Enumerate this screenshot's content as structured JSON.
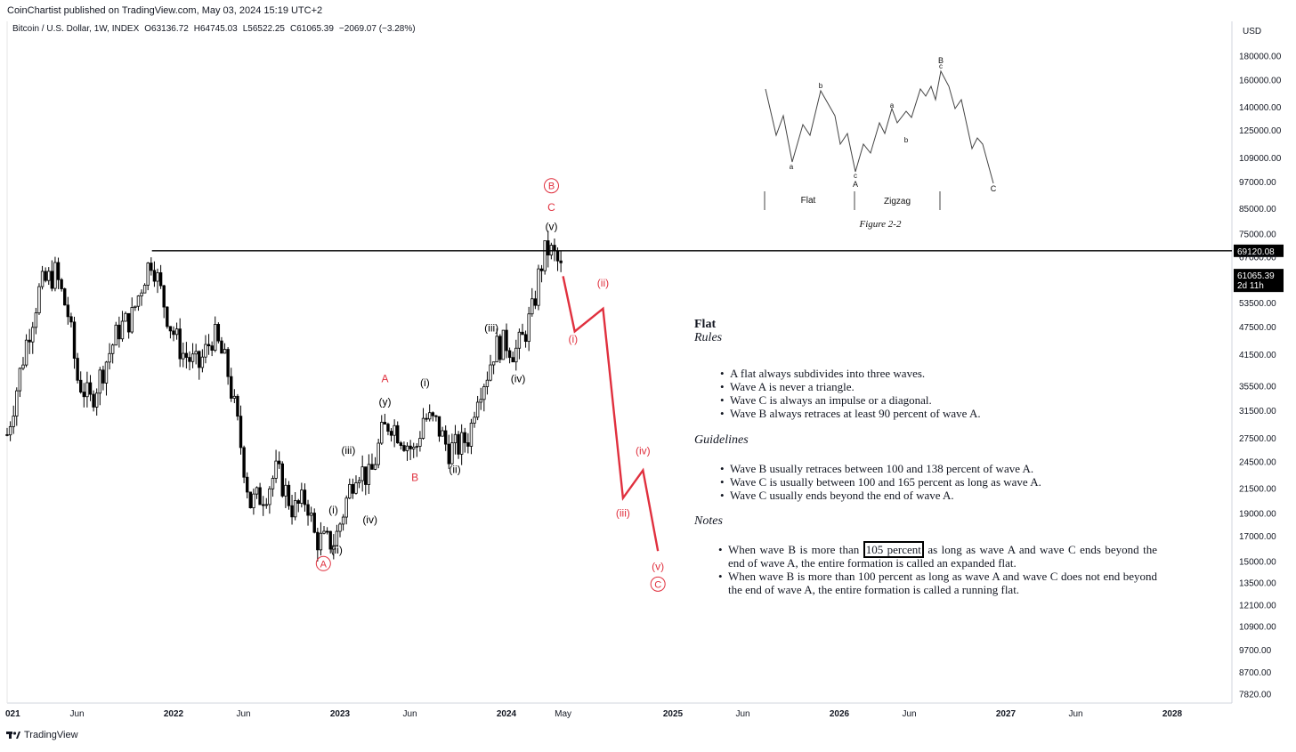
{
  "header": {
    "published": "CoinChartist published on TradingView.com, May 03, 2024 15:19 UTC+2",
    "symbol": "Bitcoin / U.S. Dollar, 1W, INDEX",
    "open": "O63136.72",
    "high": "H64745.03",
    "low": "L56522.25",
    "close": "C61065.39",
    "change": "−2069.07 (−3.28%)"
  },
  "footer": {
    "brand": "TradingView"
  },
  "colors": {
    "red": "#e0303e",
    "text": "#131722",
    "grid": "#e6e6e6"
  },
  "chart_data": {
    "type": "candlestick",
    "currency_label": "USD",
    "y_scale": "log",
    "ylim": [
      7000,
      200000
    ],
    "price_ticks": [
      "180000.00",
      "160000.00",
      "140000.00",
      "125000.00",
      "109000.00",
      "97000.00",
      "85000.00",
      "75000.00",
      "67000.00",
      "53500.00",
      "47500.00",
      "41500.00",
      "35500.00",
      "31500.00",
      "27500.00",
      "24500.00",
      "21500.00",
      "19000.00",
      "17000.00",
      "15000.00",
      "13500.00",
      "12100.00",
      "10900.00",
      "9700.00",
      "8700.00",
      "7820.00"
    ],
    "time_ticks": [
      {
        "label": "021",
        "t": 2021.0
      },
      {
        "label": "Jun",
        "t": 2021.42
      },
      {
        "label": "2022",
        "t": 2022.0
      },
      {
        "label": "Jun",
        "t": 2022.42
      },
      {
        "label": "2023",
        "t": 2023.0
      },
      {
        "label": "Jun",
        "t": 2023.42
      },
      {
        "label": "2024",
        "t": 2024.0
      },
      {
        "label": "May",
        "t": 2024.34
      },
      {
        "label": "2025",
        "t": 2025.0
      },
      {
        "label": "Jun",
        "t": 2025.42
      },
      {
        "label": "2026",
        "t": 2026.0
      },
      {
        "label": "Jun",
        "t": 2026.42
      },
      {
        "label": "2027",
        "t": 2027.0
      },
      {
        "label": "Jun",
        "t": 2027.42
      },
      {
        "label": "2028",
        "t": 2028.0
      }
    ],
    "horizontal_line": {
      "price": 69120.08,
      "label": "69120.08",
      "from_t": 2021.87
    },
    "last_price": {
      "label": "61065.39",
      "countdown": "2d 11h",
      "price": 61065.39
    },
    "price_path": [
      [
        2021.0,
        28000
      ],
      [
        2021.12,
        45000
      ],
      [
        2021.2,
        58000
      ],
      [
        2021.29,
        62000
      ],
      [
        2021.37,
        50000
      ],
      [
        2021.42,
        37000
      ],
      [
        2021.5,
        33000
      ],
      [
        2021.58,
        39000
      ],
      [
        2021.67,
        47000
      ],
      [
        2021.75,
        50000
      ],
      [
        2021.83,
        62000
      ],
      [
        2021.87,
        67000
      ],
      [
        2021.92,
        57000
      ],
      [
        2021.98,
        48000
      ],
      [
        2022.05,
        42000
      ],
      [
        2022.15,
        39000
      ],
      [
        2022.24,
        46000
      ],
      [
        2022.32,
        39000
      ],
      [
        2022.38,
        30000
      ],
      [
        2022.46,
        20000
      ],
      [
        2022.55,
        21000
      ],
      [
        2022.62,
        23500
      ],
      [
        2022.72,
        19300
      ],
      [
        2022.8,
        20500
      ],
      [
        2022.85,
        16800
      ],
      [
        2022.92,
        16500
      ],
      [
        2022.97,
        16600
      ],
      [
        2023.05,
        21000
      ],
      [
        2023.1,
        24000
      ],
      [
        2023.18,
        22500
      ],
      [
        2023.25,
        28000
      ],
      [
        2023.3,
        30000
      ],
      [
        2023.38,
        27500
      ],
      [
        2023.45,
        25500
      ],
      [
        2023.5,
        30500
      ],
      [
        2023.58,
        29500
      ],
      [
        2023.65,
        26000
      ],
      [
        2023.72,
        26500
      ],
      [
        2023.78,
        28000
      ],
      [
        2023.82,
        34500
      ],
      [
        2023.88,
        37500
      ],
      [
        2023.93,
        43000
      ],
      [
        2024.0,
        44000
      ],
      [
        2024.05,
        42000
      ],
      [
        2024.1,
        45000
      ],
      [
        2024.16,
        52000
      ],
      [
        2024.2,
        63000
      ],
      [
        2024.24,
        70000
      ],
      [
        2024.28,
        68000
      ],
      [
        2024.32,
        64000
      ],
      [
        2024.34,
        61000
      ]
    ],
    "projection": [
      [
        2024.34,
        61000
      ],
      [
        2024.41,
        46500
      ],
      [
        2024.58,
        52000
      ],
      [
        2024.7,
        20500
      ],
      [
        2024.82,
        23500
      ],
      [
        2024.91,
        15800
      ]
    ],
    "wave_labels": [
      {
        "text": "A",
        "t": 2022.9,
        "price": 14600,
        "color": "red",
        "circled": true
      },
      {
        "text": "(i)",
        "t": 2022.96,
        "price": 19000,
        "color": "black"
      },
      {
        "text": "(ii)",
        "t": 2022.98,
        "price": 15600,
        "color": "black"
      },
      {
        "text": "(iii)",
        "t": 2023.05,
        "price": 25500,
        "color": "black"
      },
      {
        "text": "(iv)",
        "t": 2023.18,
        "price": 18100,
        "color": "black"
      },
      {
        "text": "A",
        "t": 2023.27,
        "price": 36200,
        "color": "red"
      },
      {
        "text": "(y)",
        "t": 2023.27,
        "price": 32300,
        "color": "black"
      },
      {
        "text": "B",
        "t": 2023.45,
        "price": 22300,
        "color": "red"
      },
      {
        "text": "(i)",
        "t": 2023.51,
        "price": 35500,
        "color": "black"
      },
      {
        "text": "(ii)",
        "t": 2023.69,
        "price": 23200,
        "color": "black"
      },
      {
        "text": "(iii)",
        "t": 2023.91,
        "price": 46500,
        "color": "black"
      },
      {
        "text": "(iv)",
        "t": 2024.07,
        "price": 36200,
        "color": "black"
      },
      {
        "text": "B",
        "t": 2024.27,
        "price": 93500,
        "color": "red",
        "circled": true
      },
      {
        "text": "C",
        "t": 2024.27,
        "price": 84000,
        "color": "red"
      },
      {
        "text": "(v)",
        "t": 2024.27,
        "price": 76500,
        "color": "black"
      },
      {
        "text": "(i)",
        "t": 2024.4,
        "price": 44000,
        "color": "red"
      },
      {
        "text": "(ii)",
        "t": 2024.58,
        "price": 58000,
        "color": "red"
      },
      {
        "text": "(iii)",
        "t": 2024.7,
        "price": 18700,
        "color": "red"
      },
      {
        "text": "(iv)",
        "t": 2024.82,
        "price": 25400,
        "color": "red"
      },
      {
        "text": "(v)",
        "t": 2024.91,
        "price": 14400,
        "color": "red"
      },
      {
        "text": "C",
        "t": 2024.91,
        "price": 13200,
        "color": "red",
        "circled": true
      }
    ]
  },
  "figure": {
    "caption": "Figure 2-2",
    "flat_label": "Flat",
    "zigzag_label": "Zigzag",
    "letters": {
      "a1": "a",
      "b1": "b",
      "c1": "c",
      "A": "A",
      "a2": "a",
      "b2": "b",
      "c2": "c",
      "B": "B",
      "C": "C"
    }
  },
  "notes": {
    "title": "Flat",
    "rules_heading": "Rules",
    "rules": [
      "A flat always subdivides into three waves.",
      "Wave A is never a triangle.",
      "Wave C is always an impulse or a diagonal.",
      "Wave B always retraces at least 90 percent of wave A."
    ],
    "guidelines_heading": "Guidelines",
    "guidelines": [
      "Wave B usually retraces between 100 and 138 percent of wave A.",
      "Wave C is usually between 100 and 165 percent as long as wave A.",
      "Wave C usually ends beyond the end of wave A."
    ],
    "notes_heading": "Notes",
    "note1_pre": "When wave B is more than ",
    "note1_box": "105 percent",
    "note1_post": " as long as wave A and wave C ends beyond the end of wave A, the entire formation is called an expanded flat.",
    "note2": "When wave B is more than 100 percent as long as wave A and wave C does not end beyond the end of wave A, the entire formation is called a running flat."
  }
}
